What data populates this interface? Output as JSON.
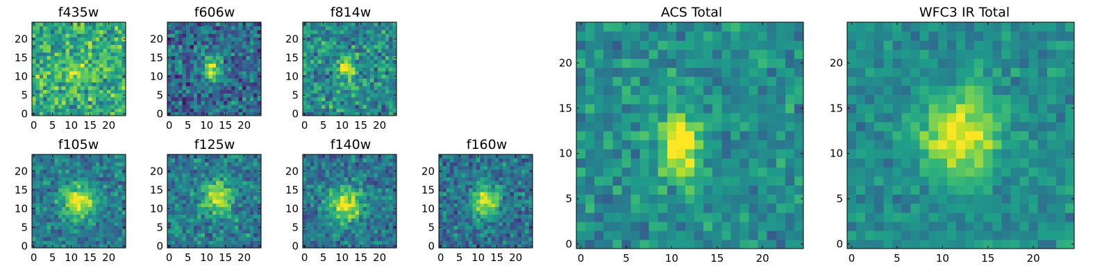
{
  "chart_data": {
    "type": "heatmap",
    "colormap": "viridis",
    "grid": false,
    "panels": [
      {
        "id": "f435w",
        "title": "f435w",
        "size": 25,
        "xlim": [
          0,
          24
        ],
        "ylim": [
          0,
          24
        ],
        "xticks": [
          0,
          5,
          10,
          15,
          20
        ],
        "yticks": [
          0,
          5,
          10,
          15,
          20
        ],
        "peak": [
          11,
          11
        ],
        "sigma": [
          2.0,
          2.0
        ],
        "amp": 0.25,
        "noise": 0.33,
        "base": 0.62,
        "seed": 11
      },
      {
        "id": "f606w",
        "title": "f606w",
        "size": 25,
        "xlim": [
          0,
          24
        ],
        "ylim": [
          0,
          24
        ],
        "xticks": [
          0,
          5,
          10,
          15,
          20
        ],
        "yticks": [
          0,
          5,
          10,
          15,
          20
        ],
        "peak": [
          11,
          12
        ],
        "sigma": [
          1.6,
          2.2
        ],
        "amp": 0.6,
        "noise": 0.32,
        "base": 0.35,
        "seed": 23
      },
      {
        "id": "f814w",
        "title": "f814w",
        "size": 25,
        "xlim": [
          0,
          24
        ],
        "ylim": [
          0,
          24
        ],
        "xticks": [
          0,
          5,
          10,
          15,
          20
        ],
        "yticks": [
          0,
          5,
          10,
          15,
          20
        ],
        "peak": [
          11,
          12
        ],
        "sigma": [
          1.6,
          2.4
        ],
        "amp": 0.5,
        "noise": 0.32,
        "base": 0.48,
        "seed": 37
      },
      {
        "id": "f105w",
        "title": "f105w",
        "size": 25,
        "xlim": [
          0,
          24
        ],
        "ylim": [
          0,
          24
        ],
        "xticks": [
          0,
          5,
          10,
          15,
          20
        ],
        "yticks": [
          0,
          5,
          10,
          15,
          20
        ],
        "peak": [
          12,
          12
        ],
        "sigma": [
          3.0,
          3.2
        ],
        "amp": 0.55,
        "noise": 0.24,
        "base": 0.42,
        "seed": 41
      },
      {
        "id": "f125w",
        "title": "f125w",
        "size": 25,
        "xlim": [
          0,
          24
        ],
        "ylim": [
          0,
          24
        ],
        "xticks": [
          0,
          5,
          10,
          15,
          20
        ],
        "yticks": [
          0,
          5,
          10,
          15,
          20
        ],
        "peak": [
          13,
          13
        ],
        "sigma": [
          3.0,
          3.0
        ],
        "amp": 0.5,
        "noise": 0.28,
        "base": 0.42,
        "seed": 53
      },
      {
        "id": "f140w",
        "title": "f140w",
        "size": 25,
        "xlim": [
          0,
          24
        ],
        "ylim": [
          0,
          24
        ],
        "xticks": [
          0,
          5,
          10,
          15,
          20
        ],
        "yticks": [
          0,
          5,
          10,
          15,
          20
        ],
        "peak": [
          11,
          11
        ],
        "sigma": [
          3.2,
          3.2
        ],
        "amp": 0.55,
        "noise": 0.24,
        "base": 0.4,
        "seed": 67
      },
      {
        "id": "f160w",
        "title": "f160w",
        "size": 25,
        "xlim": [
          0,
          24
        ],
        "ylim": [
          0,
          24
        ],
        "xticks": [
          0,
          5,
          10,
          15,
          20
        ],
        "yticks": [
          0,
          5,
          10,
          15,
          20
        ],
        "peak": [
          12,
          12
        ],
        "sigma": [
          2.4,
          3.0
        ],
        "amp": 0.6,
        "noise": 0.26,
        "base": 0.38,
        "seed": 79
      },
      {
        "id": "acs",
        "title": "ACS Total",
        "size": 25,
        "xlim": [
          0,
          24
        ],
        "ylim": [
          0,
          24
        ],
        "xticks": [
          0,
          5,
          10,
          15,
          20
        ],
        "yticks": [
          0,
          5,
          10,
          15,
          20
        ],
        "peak": [
          11,
          11
        ],
        "sigma": [
          1.5,
          2.3
        ],
        "amp": 0.6,
        "noise": 0.22,
        "base": 0.5,
        "seed": 91
      },
      {
        "id": "wfc3",
        "title": "WFC3 IR Total",
        "size": 25,
        "xlim": [
          0,
          24
        ],
        "ylim": [
          0,
          24
        ],
        "xticks": [
          0,
          5,
          10,
          15,
          20
        ],
        "yticks": [
          0,
          5,
          10,
          15,
          20
        ],
        "peak": [
          12,
          12
        ],
        "sigma": [
          2.8,
          3.2
        ],
        "amp": 0.55,
        "noise": 0.17,
        "base": 0.48,
        "seed": 103
      }
    ]
  }
}
